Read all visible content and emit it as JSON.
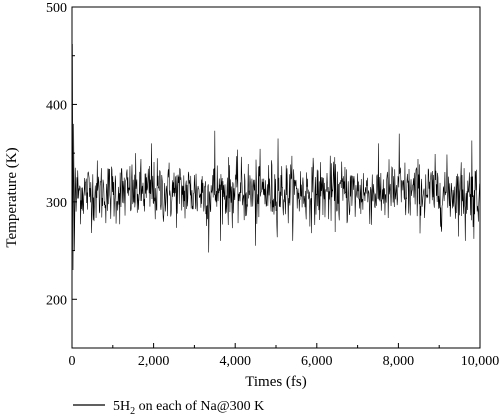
{
  "chart_data": {
    "type": "line",
    "title": "",
    "xlabel": "Times (fs)",
    "ylabel": "Temperature (K)",
    "xlim": [
      0,
      10000
    ],
    "ylim": [
      150,
      500
    ],
    "x_ticks": [
      0,
      2000,
      4000,
      6000,
      8000,
      10000
    ],
    "x_tick_labels": [
      "0",
      "2,000",
      "4,000",
      "6,000",
      "8,000",
      "10,000"
    ],
    "y_ticks": [
      200,
      300,
      400,
      500
    ],
    "y_tick_labels": [
      "200",
      "300",
      "400",
      "500"
    ],
    "grid": false,
    "legend_position": "bottom-left",
    "series": [
      {
        "name": "5H2 on each of Na@300 K",
        "legend_prefix": "5H",
        "legend_subscript": "2",
        "legend_suffix": " on each of Na@300 K",
        "color": "#000000",
        "x_step": 10,
        "x_start": 0,
        "initial_points": [
          [
            0,
            300
          ],
          [
            10,
            462
          ],
          [
            25,
            230
          ],
          [
            40,
            380
          ],
          [
            60,
            250
          ],
          [
            80,
            335
          ],
          [
            100,
            290
          ]
        ],
        "mean": 310,
        "noise_sd": 16,
        "notable_peaks": [
          [
            3500,
            373
          ],
          [
            5050,
            365
          ],
          [
            8020,
            370
          ],
          [
            9800,
            363
          ],
          [
            1950,
            360
          ]
        ],
        "notable_troughs": [
          [
            3350,
            248
          ],
          [
            4500,
            255
          ],
          [
            9640,
            260
          ],
          [
            9850,
            262
          ]
        ]
      }
    ]
  }
}
